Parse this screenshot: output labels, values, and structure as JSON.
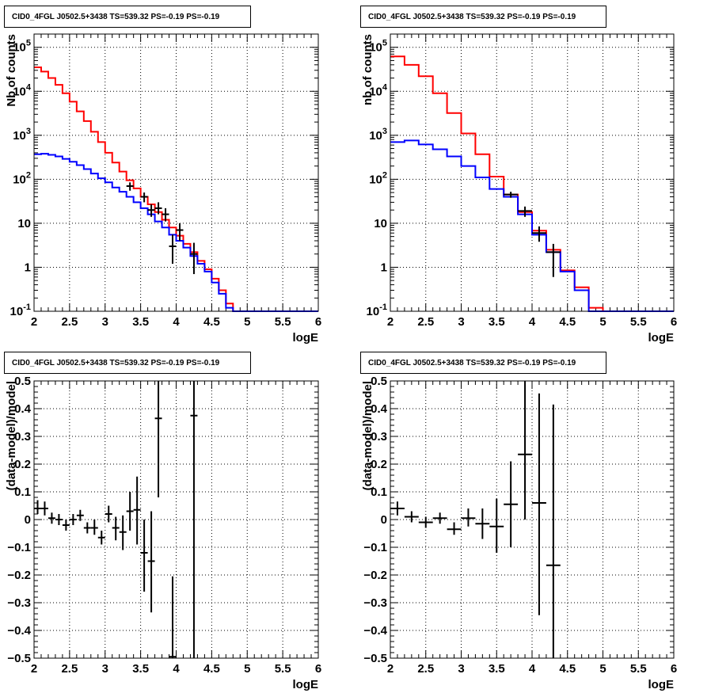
{
  "chart_data": [
    {
      "id": "p1",
      "type": "step",
      "title": "CID0_4FGL J0502.5+3438 TS=539.32 PS=-0.19 PS=-0.19",
      "xlabel": "logE",
      "ylabel": "Nb of counts",
      "xlim": [
        2,
        6
      ],
      "ylim": [
        0.1,
        200000
      ],
      "yscale": "log",
      "grid": true,
      "x_ticks": [
        2,
        2.5,
        3,
        3.5,
        4,
        4.5,
        5,
        5.5,
        6
      ],
      "x_tick_labels": [
        "2",
        "2.5",
        "3",
        "3.5",
        "4",
        "4.5",
        "5",
        "5.5",
        "6"
      ],
      "y_ticks": [
        0.1,
        1,
        10,
        100,
        1000,
        10000,
        100000
      ],
      "y_tick_labels": [
        {
          "base": "10",
          "exp": "-1"
        },
        {
          "base": "1",
          "exp": ""
        },
        {
          "base": "10",
          "exp": ""
        },
        {
          "base": "10",
          "exp": "2"
        },
        {
          "base": "10",
          "exp": "3"
        },
        {
          "base": "10",
          "exp": "4"
        },
        {
          "base": "10",
          "exp": "5"
        }
      ],
      "bin_edges": [
        2.0,
        2.1,
        2.2,
        2.3,
        2.4,
        2.5,
        2.6,
        2.7,
        2.8,
        2.9,
        3.0,
        3.1,
        3.2,
        3.3,
        3.4,
        3.5,
        3.6,
        3.7,
        3.8,
        3.9,
        4.0,
        4.1,
        4.2,
        4.3,
        4.4,
        4.5,
        4.6,
        4.7,
        4.8,
        4.9,
        5.0,
        5.1,
        5.2,
        5.3,
        5.4,
        5.5,
        5.6,
        5.7,
        5.8,
        5.9,
        6.0
      ],
      "series": [
        {
          "name": "",
          "color": "#ff0000",
          "style": "step",
          "values": [
            35000,
            28000,
            20000,
            14000,
            9000,
            5800,
            3500,
            2100,
            1200,
            700,
            400,
            240,
            150,
            95,
            62,
            40,
            27,
            18,
            12,
            8,
            5.2,
            3.4,
            2.2,
            1.4,
            0.9,
            0.55,
            0.3,
            0.15,
            0.1,
            0.1,
            0.1,
            0.1,
            0.1,
            0.1,
            0.1,
            0.1,
            0.1,
            0.1,
            0.1,
            0.1
          ]
        },
        {
          "name": "",
          "color": "#0000ff",
          "style": "step",
          "values": [
            370,
            380,
            360,
            330,
            290,
            250,
            210,
            170,
            135,
            105,
            85,
            65,
            52,
            40,
            30,
            22,
            16,
            11,
            8,
            5.5,
            4,
            2.8,
            1.8,
            1.2,
            0.8,
            0.45,
            0.25,
            0.12,
            0.1,
            0.1,
            0.1,
            0.1,
            0.1,
            0.1,
            0.1,
            0.1,
            0.1,
            0.1,
            0.1,
            0.1
          ]
        },
        {
          "name": "",
          "color": "#000000",
          "style": "points",
          "points": [
            {
              "x": 3.35,
              "y": 70,
              "ylo": 55,
              "yhi": 85
            },
            {
              "x": 3.55,
              "y": 40,
              "ylo": 30,
              "yhi": 50
            },
            {
              "x": 3.65,
              "y": 20,
              "ylo": 14,
              "yhi": 27
            },
            {
              "x": 3.75,
              "y": 22,
              "ylo": 16,
              "yhi": 30
            },
            {
              "x": 3.85,
              "y": 16,
              "ylo": 11,
              "yhi": 22
            },
            {
              "x": 3.95,
              "y": 3,
              "ylo": 1.2,
              "yhi": 5.5
            },
            {
              "x": 4.05,
              "y": 7,
              "ylo": 4,
              "yhi": 10
            },
            {
              "x": 4.25,
              "y": 2,
              "ylo": 0.7,
              "yhi": 3.6
            }
          ]
        }
      ]
    },
    {
      "id": "p2",
      "type": "step",
      "title": "CID0_4FGL J0502.5+3438 TS=539.32 PS=-0.19 PS=-0.19",
      "xlabel": "logE",
      "ylabel": "nb of counts",
      "xlim": [
        2,
        6
      ],
      "ylim": [
        0.1,
        200000
      ],
      "yscale": "log",
      "grid": true,
      "x_ticks": [
        2,
        2.5,
        3,
        3.5,
        4,
        4.5,
        5,
        5.5,
        6
      ],
      "x_tick_labels": [
        "2",
        "2.5",
        "3",
        "3.5",
        "4",
        "4.5",
        "5",
        "5.5",
        "6"
      ],
      "y_ticks": [
        0.1,
        1,
        10,
        100,
        1000,
        10000,
        100000
      ],
      "y_tick_labels": [
        {
          "base": "10",
          "exp": "-1"
        },
        {
          "base": "1",
          "exp": ""
        },
        {
          "base": "10",
          "exp": ""
        },
        {
          "base": "10",
          "exp": "2"
        },
        {
          "base": "10",
          "exp": "3"
        },
        {
          "base": "10",
          "exp": "4"
        },
        {
          "base": "10",
          "exp": "5"
        }
      ],
      "bin_edges": [
        2.0,
        2.2,
        2.4,
        2.6,
        2.8,
        3.0,
        3.2,
        3.4,
        3.6,
        3.8,
        4.0,
        4.2,
        4.4,
        4.6,
        4.8,
        5.0,
        5.2,
        5.4,
        5.6,
        5.8,
        6.0
      ],
      "series": [
        {
          "name": "",
          "color": "#ff0000",
          "style": "step",
          "values": [
            62000,
            40000,
            22000,
            9000,
            3200,
            1100,
            370,
            115,
            45,
            18,
            6.8,
            2.5,
            0.85,
            0.35,
            0.12,
            0.1,
            0.1,
            0.1,
            0.1,
            0.1
          ]
        },
        {
          "name": "",
          "color": "#0000ff",
          "style": "step",
          "values": [
            700,
            760,
            620,
            480,
            330,
            200,
            110,
            60,
            40,
            16,
            5.5,
            2.2,
            0.8,
            0.3,
            0.1,
            0.1,
            0.1,
            0.1,
            0.1,
            0.1
          ]
        },
        {
          "name": "",
          "color": "#000000",
          "style": "points",
          "points": [
            {
              "x": 3.7,
              "y": 45,
              "ylo": 38,
              "yhi": 52
            },
            {
              "x": 3.9,
              "y": 19,
              "ylo": 14,
              "yhi": 24
            },
            {
              "x": 4.1,
              "y": 6,
              "ylo": 3.8,
              "yhi": 8.5
            },
            {
              "x": 4.3,
              "y": 2.2,
              "ylo": 0.6,
              "yhi": 3.4
            }
          ]
        }
      ]
    },
    {
      "id": "p3",
      "type": "scatter",
      "title": "CID0_4FGL J0502.5+3438 TS=539.32 PS=-0.19 PS=-0.19",
      "xlabel": "logE",
      "ylabel": "(data-model)/model",
      "xlim": [
        2,
        6
      ],
      "ylim": [
        -0.5,
        0.5
      ],
      "yscale": "linear",
      "grid": true,
      "x_ticks": [
        2,
        2.5,
        3,
        3.5,
        4,
        4.5,
        5,
        5.5,
        6
      ],
      "x_tick_labels": [
        "2",
        "2.5",
        "3",
        "3.5",
        "4",
        "4.5",
        "5",
        "5.5",
        "6"
      ],
      "y_ticks": [
        -0.5,
        -0.4,
        -0.3,
        -0.2,
        -0.1,
        0,
        0.1,
        0.2,
        0.3,
        0.4,
        0.5
      ],
      "y_tick_labels": [
        "−0.5",
        "−0.4",
        "−0.3",
        "−0.2",
        "−0.1",
        "0",
        "0.1",
        "0.2",
        "0.3",
        "0.4",
        "0.5"
      ],
      "series": [
        {
          "name": "",
          "color": "#000000",
          "style": "points",
          "xhalfwidth": 0.05,
          "points": [
            {
              "x": 2.05,
              "y": 0.04,
              "ylo": 0.02,
              "yhi": 0.07
            },
            {
              "x": 2.15,
              "y": 0.04,
              "ylo": 0.015,
              "yhi": 0.065
            },
            {
              "x": 2.25,
              "y": 0.005,
              "ylo": -0.015,
              "yhi": 0.025
            },
            {
              "x": 2.35,
              "y": 0.0,
              "ylo": -0.02,
              "yhi": 0.02
            },
            {
              "x": 2.45,
              "y": -0.02,
              "ylo": -0.04,
              "yhi": 0.0
            },
            {
              "x": 2.55,
              "y": 0.0,
              "ylo": -0.02,
              "yhi": 0.02
            },
            {
              "x": 2.65,
              "y": 0.015,
              "ylo": -0.005,
              "yhi": 0.035
            },
            {
              "x": 2.75,
              "y": -0.03,
              "ylo": -0.05,
              "yhi": -0.01
            },
            {
              "x": 2.85,
              "y": -0.03,
              "ylo": -0.055,
              "yhi": 0.0
            },
            {
              "x": 2.95,
              "y": -0.065,
              "ylo": -0.09,
              "yhi": -0.04
            },
            {
              "x": 3.05,
              "y": 0.02,
              "ylo": -0.01,
              "yhi": 0.05
            },
            {
              "x": 3.15,
              "y": -0.03,
              "ylo": -0.075,
              "yhi": 0.01
            },
            {
              "x": 3.25,
              "y": -0.045,
              "ylo": -0.11,
              "yhi": 0.015
            },
            {
              "x": 3.35,
              "y": 0.03,
              "ylo": -0.04,
              "yhi": 0.1
            },
            {
              "x": 3.45,
              "y": 0.035,
              "ylo": -0.09,
              "yhi": 0.155
            },
            {
              "x": 3.55,
              "y": -0.12,
              "ylo": -0.26,
              "yhi": 0.0
            },
            {
              "x": 3.65,
              "y": -0.15,
              "ylo": -0.335,
              "yhi": 0.03
            },
            {
              "x": 3.75,
              "y": 0.365,
              "ylo": 0.08,
              "yhi": 0.5
            },
            {
              "x": 3.95,
              "y": -0.495,
              "ylo": -0.5,
              "yhi": -0.205
            },
            {
              "x": 4.25,
              "y": 0.375,
              "ylo": -0.5,
              "yhi": 0.5
            }
          ]
        }
      ]
    },
    {
      "id": "p4",
      "type": "scatter",
      "title": "CID0_4FGL J0502.5+3438 TS=539.32 PS=-0.19 PS=-0.19",
      "xlabel": "logE",
      "ylabel": "(data-model)/model",
      "xlim": [
        2,
        6
      ],
      "ylim": [
        -0.5,
        0.5
      ],
      "yscale": "linear",
      "grid": true,
      "x_ticks": [
        2,
        2.5,
        3,
        3.5,
        4,
        4.5,
        5,
        5.5,
        6
      ],
      "x_tick_labels": [
        "2",
        "2.5",
        "3",
        "3.5",
        "4",
        "4.5",
        "5",
        "5.5",
        "6"
      ],
      "y_ticks": [
        -0.5,
        -0.4,
        -0.3,
        -0.2,
        -0.1,
        0,
        0.1,
        0.2,
        0.3,
        0.4,
        0.5
      ],
      "y_tick_labels": [
        "−0.5",
        "−0.4",
        "−0.3",
        "−0.2",
        "−0.1",
        "0",
        "0.1",
        "0.2",
        "0.3",
        "0.4",
        "0.5"
      ],
      "series": [
        {
          "name": "",
          "color": "#000000",
          "style": "points",
          "xhalfwidth": 0.1,
          "points": [
            {
              "x": 2.1,
              "y": 0.04,
              "ylo": 0.015,
              "yhi": 0.065
            },
            {
              "x": 2.3,
              "y": 0.01,
              "ylo": -0.01,
              "yhi": 0.03
            },
            {
              "x": 2.5,
              "y": -0.01,
              "ylo": -0.03,
              "yhi": 0.01
            },
            {
              "x": 2.7,
              "y": 0.005,
              "ylo": -0.015,
              "yhi": 0.025
            },
            {
              "x": 2.9,
              "y": -0.035,
              "ylo": -0.055,
              "yhi": -0.01
            },
            {
              "x": 3.1,
              "y": 0.005,
              "ylo": -0.025,
              "yhi": 0.04
            },
            {
              "x": 3.3,
              "y": -0.015,
              "ylo": -0.07,
              "yhi": 0.04
            },
            {
              "x": 3.5,
              "y": -0.025,
              "ylo": -0.12,
              "yhi": 0.075
            },
            {
              "x": 3.7,
              "y": 0.055,
              "ylo": -0.1,
              "yhi": 0.21
            },
            {
              "x": 3.9,
              "y": 0.235,
              "ylo": 0.0,
              "yhi": 0.5
            },
            {
              "x": 4.1,
              "y": 0.06,
              "ylo": -0.345,
              "yhi": 0.455
            },
            {
              "x": 4.3,
              "y": -0.165,
              "ylo": -0.5,
              "yhi": 0.415
            }
          ]
        }
      ]
    }
  ]
}
